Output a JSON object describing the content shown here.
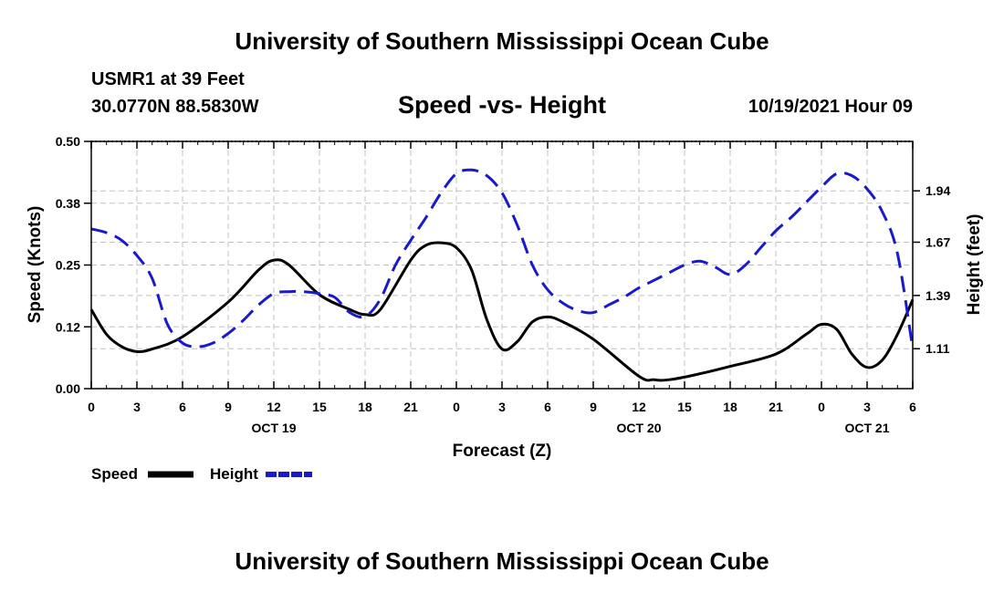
{
  "header": {
    "title": "University of Southern Mississippi Ocean Cube",
    "station": "USMR1 at 39 Feet",
    "coords": "30.0770N  88.5830W",
    "chart_title": "Speed -vs- Height",
    "date_hour": "10/19/2021 Hour 09"
  },
  "footer": {
    "title": "University of Southern Mississippi Ocean Cube"
  },
  "colors": {
    "speed": "#000000",
    "height": "#1a1acc",
    "grid": "#c0c0c0"
  },
  "chart_data": {
    "type": "line",
    "title": "Speed -vs- Height",
    "xlabel": "Forecast (Z)",
    "ylabel": "Speed (Knots)",
    "y2label": "Height (feet)",
    "x_start_hour": 0,
    "x_end_hour": 54,
    "x_tick_step_hours": 3,
    "x_tick_labels": [
      "0",
      "3",
      "6",
      "9",
      "12",
      "15",
      "18",
      "21",
      "0",
      "3",
      "6",
      "9",
      "12",
      "15",
      "18",
      "21",
      "0",
      "3",
      "6"
    ],
    "date_labels": [
      {
        "hour": 12,
        "label": "OCT 19"
      },
      {
        "hour": 36,
        "label": "OCT 20"
      },
      {
        "hour": 51,
        "label": "OCT 21"
      }
    ],
    "ylim": [
      0,
      0.5
    ],
    "y_ticks": [
      0.0,
      0.125,
      0.25,
      0.375,
      0.5
    ],
    "y_tick_labels": [
      "0.00",
      "0.12",
      "0.25",
      "0.38",
      "0.50"
    ],
    "y2lim": [
      0.9,
      2.2
    ],
    "y2_ticks": [
      1.11,
      1.39,
      1.67,
      1.94
    ],
    "y2_tick_labels": [
      "1.11",
      "1.39",
      "1.67",
      "1.94"
    ],
    "grid": true,
    "series": [
      {
        "name": "Speed",
        "axis": "left",
        "style": "solid",
        "x": [
          0,
          1,
          2,
          3,
          4,
          6,
          9,
          11,
          12,
          13,
          15,
          17,
          18,
          19,
          21,
          22,
          23,
          24,
          25,
          26,
          27,
          28,
          29,
          30,
          31,
          33,
          36,
          37,
          38,
          40,
          42,
          45,
          47,
          48,
          49,
          50,
          51,
          52,
          53,
          54
        ],
        "values": [
          0.16,
          0.11,
          0.085,
          0.075,
          0.08,
          0.105,
          0.175,
          0.24,
          0.26,
          0.25,
          0.19,
          0.16,
          0.15,
          0.16,
          0.26,
          0.29,
          0.295,
          0.285,
          0.24,
          0.14,
          0.08,
          0.095,
          0.135,
          0.145,
          0.135,
          0.1,
          0.025,
          0.018,
          0.018,
          0.03,
          0.045,
          0.07,
          0.11,
          0.13,
          0.12,
          0.07,
          0.043,
          0.058,
          0.11,
          0.18
        ]
      },
      {
        "name": "Height",
        "axis": "right",
        "style": "dashed",
        "x": [
          0,
          1,
          2,
          3,
          4,
          5,
          6,
          7,
          8,
          9,
          10,
          11,
          12,
          13,
          14,
          15,
          16,
          17,
          18,
          19,
          20,
          21,
          22,
          23,
          24,
          25,
          26,
          27,
          28,
          29,
          30,
          31,
          32,
          33,
          34,
          35,
          36,
          37,
          38,
          39,
          40,
          41,
          42,
          43,
          44,
          45,
          46,
          47,
          48,
          49,
          50,
          51,
          52,
          53,
          54
        ],
        "values": [
          1.74,
          1.72,
          1.68,
          1.6,
          1.48,
          1.24,
          1.14,
          1.12,
          1.14,
          1.19,
          1.26,
          1.34,
          1.4,
          1.41,
          1.41,
          1.4,
          1.38,
          1.3,
          1.28,
          1.37,
          1.55,
          1.68,
          1.8,
          1.93,
          2.03,
          2.05,
          2.02,
          1.93,
          1.76,
          1.55,
          1.42,
          1.35,
          1.31,
          1.3,
          1.34,
          1.38,
          1.43,
          1.47,
          1.51,
          1.55,
          1.57,
          1.54,
          1.5,
          1.55,
          1.64,
          1.73,
          1.8,
          1.88,
          1.96,
          2.03,
          2.02,
          1.95,
          1.83,
          1.61,
          1.11
        ]
      }
    ],
    "legend": [
      {
        "label": "Speed",
        "series": "Speed"
      },
      {
        "label": "Height",
        "series": "Height"
      }
    ]
  }
}
